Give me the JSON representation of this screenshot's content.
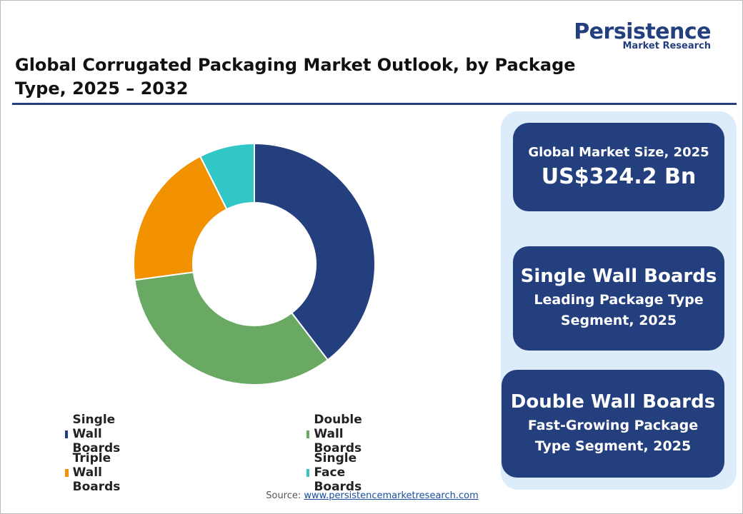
{
  "logo": {
    "name": "Persistence",
    "tagline": "Market Research"
  },
  "chart_data": {
    "type": "donut",
    "title": "Global Corrugated Packaging Market Outlook, by Package Type, 2025 – 2032",
    "categories": [
      "Single Wall Boards",
      "Double Wall Boards",
      "Triple Wall Boards",
      "Single Face Boards"
    ],
    "values": [
      39.6,
      33.3,
      19.7,
      7.4
    ],
    "colors": [
      "#243f7e",
      "#6aa964",
      "#f39200",
      "#33c6c6"
    ],
    "source_label": "Source:",
    "source_url": "www.persistencemarketresearch.com"
  },
  "highlights": [
    {
      "heading": "Global Market Size, 2025",
      "value": "US$324.2 Bn"
    },
    {
      "heading": "Single Wall Boards",
      "text": "Leading Package Type Segment, 2025"
    },
    {
      "heading": "Double Wall Boards",
      "text": "Fast-Growing Package Type Segment, 2025"
    }
  ]
}
